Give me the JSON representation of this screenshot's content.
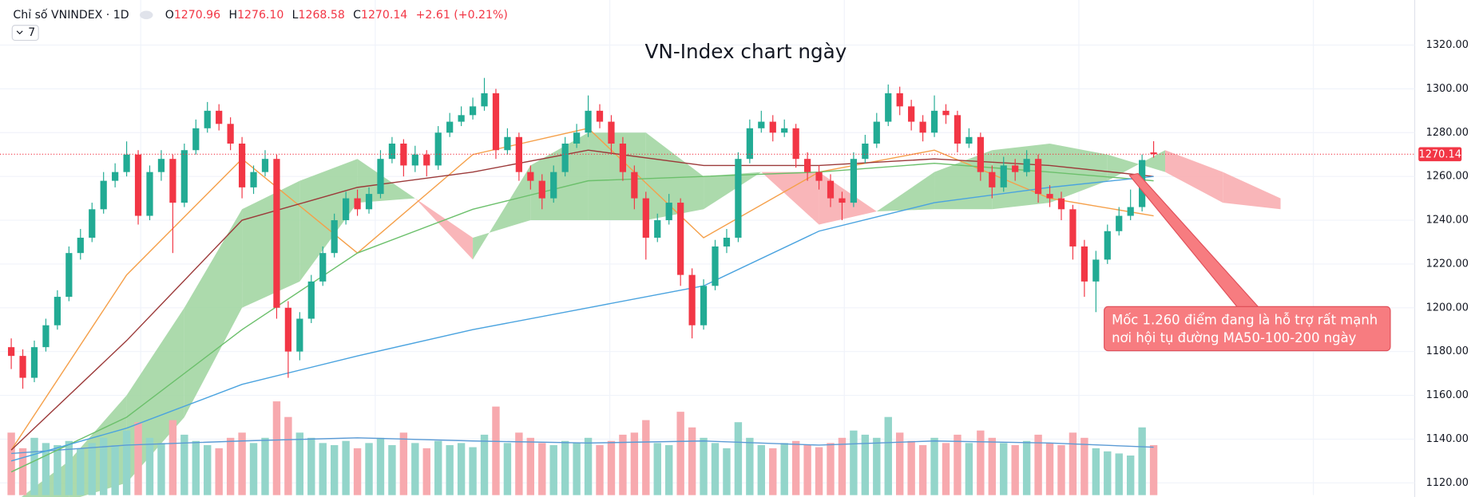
{
  "chart_data": {
    "type": "candlestick",
    "title": "VN-Index chart ngày",
    "symbol": "Chỉ số VNINDEX · 1D",
    "interval_button": "7",
    "legend": [
      {
        "key": "O",
        "value": "1270.96"
      },
      {
        "key": "H",
        "value": "1276.10"
      },
      {
        "key": "L",
        "value": "1268.58"
      },
      {
        "key": "C",
        "value": "1270.14"
      }
    ],
    "change": "+2.61 (+0.21%)",
    "last_price_label": "1270.14",
    "annotation": [
      "Mốc 1.260 điểm đang là hỗ trợ rất mạnh",
      "nơi hội tụ đường MA50-100-200 ngày"
    ],
    "up_color": "#22ab94",
    "down_color": "#f23645",
    "volume_up_color": "#93d5ca",
    "volume_down_color": "#f7a9ae",
    "ylim": [
      1114.4,
      1340.6
    ],
    "yticks": [
      {
        "value": 1120,
        "label": "1120.00"
      },
      {
        "value": 1140,
        "label": "1140.00"
      },
      {
        "value": 1160,
        "label": "1160.00"
      },
      {
        "value": 1180,
        "label": "1180.00"
      },
      {
        "value": 1200,
        "label": "1200.00"
      },
      {
        "value": 1220,
        "label": "1220.00"
      },
      {
        "value": 1240,
        "label": "1240.00"
      },
      {
        "value": 1260,
        "label": "1260.00"
      },
      {
        "value": 1280,
        "label": "1280.00"
      },
      {
        "value": 1300,
        "label": "1300.00"
      },
      {
        "value": 1320,
        "label": "1320.00"
      }
    ],
    "grid": true,
    "open": [
      1182,
      1178,
      1168,
      1182,
      1192,
      1205,
      1225,
      1232,
      1245,
      1258,
      1262,
      1270,
      1242,
      1262,
      1268,
      1248,
      1272,
      1282,
      1290,
      1284,
      1275,
      1255,
      1262,
      1268,
      1200,
      1180,
      1195,
      1212,
      1225,
      1240,
      1250,
      1245,
      1252,
      1268,
      1275,
      1265,
      1270,
      1265,
      1280,
      1285,
      1288,
      1292,
      1298,
      1272,
      1278,
      1262,
      1258,
      1250,
      1262,
      1275,
      1280,
      1290,
      1285,
      1275,
      1262,
      1250,
      1232,
      1240,
      1248,
      1215,
      1192,
      1210,
      1228,
      1232,
      1268,
      1282,
      1285,
      1280,
      1282,
      1268,
      1262,
      1258,
      1250,
      1248,
      1268,
      1275,
      1285,
      1298,
      1292,
      1285,
      1280,
      1290,
      1288,
      1275,
      1278,
      1262,
      1255,
      1265,
      1262,
      1268,
      1252,
      1250,
      1245,
      1228,
      1212,
      1222,
      1235,
      1242,
      1246,
      1270.96
    ],
    "high": [
      1186,
      1181,
      1185,
      1195,
      1208,
      1228,
      1236,
      1248,
      1262,
      1266,
      1276,
      1272,
      1265,
      1272,
      1270,
      1275,
      1286,
      1294,
      1293,
      1287,
      1278,
      1265,
      1272,
      1270,
      1203,
      1198,
      1215,
      1228,
      1243,
      1253,
      1254,
      1255,
      1272,
      1278,
      1277,
      1274,
      1272,
      1283,
      1289,
      1292,
      1296,
      1305,
      1300,
      1282,
      1280,
      1265,
      1261,
      1265,
      1278,
      1284,
      1297,
      1293,
      1288,
      1278,
      1265,
      1253,
      1243,
      1252,
      1250,
      1218,
      1213,
      1231,
      1236,
      1271,
      1286,
      1290,
      1288,
      1286,
      1284,
      1271,
      1265,
      1261,
      1253,
      1271,
      1279,
      1289,
      1302,
      1301,
      1295,
      1288,
      1297,
      1293,
      1290,
      1282,
      1280,
      1265,
      1269,
      1268,
      1272,
      1270,
      1256,
      1253,
      1247,
      1231,
      1226,
      1238,
      1246,
      1254,
      1270,
      1276.1
    ],
    "low": [
      1172,
      1163,
      1166,
      1180,
      1190,
      1203,
      1222,
      1230,
      1243,
      1255,
      1260,
      1238,
      1240,
      1258,
      1225,
      1246,
      1270,
      1280,
      1281,
      1272,
      1250,
      1252,
      1260,
      1195,
      1168,
      1176,
      1193,
      1210,
      1223,
      1238,
      1242,
      1243,
      1250,
      1266,
      1260,
      1262,
      1260,
      1263,
      1278,
      1283,
      1286,
      1290,
      1268,
      1270,
      1258,
      1254,
      1245,
      1248,
      1260,
      1273,
      1278,
      1282,
      1270,
      1258,
      1245,
      1222,
      1230,
      1238,
      1210,
      1186,
      1190,
      1208,
      1225,
      1230,
      1266,
      1280,
      1276,
      1278,
      1264,
      1258,
      1254,
      1246,
      1240,
      1246,
      1266,
      1273,
      1283,
      1288,
      1281,
      1276,
      1278,
      1284,
      1271,
      1273,
      1258,
      1250,
      1253,
      1258,
      1260,
      1248,
      1246,
      1240,
      1222,
      1205,
      1198,
      1220,
      1233,
      1240,
      1244,
      1268.58
    ],
    "close": [
      1178,
      1168,
      1182,
      1192,
      1205,
      1225,
      1232,
      1245,
      1258,
      1262,
      1270,
      1242,
      1262,
      1268,
      1248,
      1272,
      1282,
      1290,
      1284,
      1275,
      1255,
      1262,
      1268,
      1200,
      1180,
      1195,
      1212,
      1225,
      1240,
      1250,
      1245,
      1252,
      1268,
      1275,
      1265,
      1270,
      1265,
      1280,
      1285,
      1288,
      1292,
      1298,
      1272,
      1278,
      1262,
      1258,
      1250,
      1262,
      1275,
      1280,
      1290,
      1285,
      1275,
      1262,
      1250,
      1232,
      1240,
      1248,
      1215,
      1192,
      1210,
      1228,
      1232,
      1268,
      1282,
      1285,
      1280,
      1282,
      1268,
      1262,
      1258,
      1250,
      1248,
      1268,
      1275,
      1285,
      1298,
      1292,
      1285,
      1280,
      1290,
      1288,
      1275,
      1278,
      1262,
      1255,
      1265,
      1262,
      1268,
      1252,
      1250,
      1245,
      1228,
      1212,
      1222,
      1235,
      1242,
      1246,
      1267.5,
      1270.14
    ],
    "volume": [
      60,
      45,
      55,
      50,
      48,
      52,
      45,
      50,
      55,
      48,
      62,
      70,
      55,
      50,
      72,
      58,
      52,
      48,
      45,
      55,
      60,
      50,
      55,
      90,
      75,
      60,
      55,
      50,
      48,
      52,
      45,
      50,
      55,
      48,
      60,
      50,
      45,
      52,
      48,
      50,
      46,
      58,
      85,
      50,
      60,
      55,
      50,
      48,
      52,
      50,
      55,
      48,
      52,
      58,
      60,
      72,
      50,
      48,
      80,
      65,
      55,
      50,
      45,
      70,
      55,
      48,
      45,
      50,
      52,
      48,
      46,
      50,
      55,
      62,
      58,
      55,
      75,
      60,
      52,
      48,
      55,
      50,
      58,
      50,
      62,
      55,
      50,
      48,
      52,
      58,
      50,
      48,
      60,
      55,
      45,
      42,
      40,
      38,
      65,
      48
    ],
    "volume_ma": {
      "color": "#5b9bd5",
      "x": [
        0,
        10,
        20,
        30,
        40,
        50,
        60,
        70,
        80,
        90,
        99
      ],
      "values": [
        40,
        48,
        52,
        55,
        52,
        50,
        52,
        48,
        52,
        50,
        46
      ]
    },
    "series": [
      {
        "color": "#f5a04a",
        "x": [
          0,
          10,
          20,
          30,
          40,
          50,
          60,
          70,
          80,
          90,
          99
        ],
        "values": [
          1135,
          1215,
          1268,
          1225,
          1270,
          1282,
          1232,
          1262,
          1272,
          1250,
          1242
        ]
      },
      {
        "color": "#9c3a3a",
        "x": [
          0,
          10,
          20,
          30,
          40,
          50,
          60,
          70,
          80,
          90,
          99
        ],
        "values": [
          1135,
          1185,
          1240,
          1255,
          1262,
          1272,
          1265,
          1265,
          1268,
          1265,
          1260
        ]
      },
      {
        "color": "#6cc06c",
        "x": [
          0,
          10,
          20,
          30,
          40,
          50,
          60,
          70,
          80,
          90,
          99
        ],
        "values": [
          1125,
          1150,
          1190,
          1225,
          1245,
          1258,
          1260,
          1262,
          1266,
          1262,
          1258
        ]
      },
      {
        "color": "#4aa3df",
        "x": [
          0,
          10,
          20,
          30,
          40,
          50,
          60,
          70,
          80,
          90,
          99
        ],
        "values": [
          1130,
          1145,
          1165,
          1178,
          1190,
          1200,
          1210,
          1235,
          1248,
          1255,
          1260
        ]
      }
    ],
    "cloud": {
      "up_color": "#9dd39d",
      "down_color": "#f8a9ad",
      "x": [
        0,
        5,
        10,
        15,
        20,
        25,
        30,
        35,
        40,
        45,
        50,
        55,
        60,
        65,
        70,
        75,
        80,
        85,
        90,
        95,
        100,
        105,
        110
      ],
      "span_a": [
        1110,
        1130,
        1160,
        1200,
        1245,
        1258,
        1268,
        1250,
        1222,
        1265,
        1280,
        1280,
        1260,
        1262,
        1238,
        1244,
        1262,
        1272,
        1275,
        1270,
        1262,
        1248,
        1245
      ],
      "span_b": [
        1105,
        1112,
        1120,
        1150,
        1200,
        1212,
        1248,
        1250,
        1232,
        1240,
        1240,
        1240,
        1245,
        1262,
        1262,
        1244,
        1245,
        1245,
        1248,
        1258,
        1272,
        1262,
        1250
      ]
    }
  }
}
